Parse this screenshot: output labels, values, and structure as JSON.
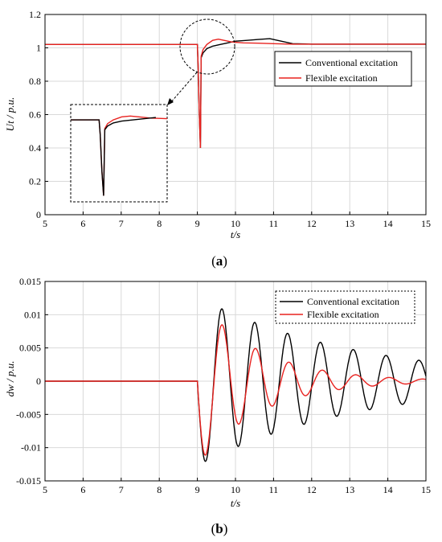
{
  "colors": {
    "conventional": "#000000",
    "flexible": "#e8221f",
    "grid": "#d9d9d9"
  },
  "chart_data": [
    {
      "type": "line",
      "panel": "a",
      "caption": "(a)",
      "caption_letter": "a",
      "title": "",
      "xlabel": "t/s",
      "ylabel": "Ut / p.u.",
      "xlim": [
        5,
        15
      ],
      "ylim": [
        0,
        1.2
      ],
      "xticks": [
        "5",
        "6",
        "7",
        "8",
        "9",
        "10",
        "11",
        "12",
        "13",
        "14",
        "15"
      ],
      "yticks": [
        "0",
        "0.2",
        "0.4",
        "0.6",
        "0.8",
        "1",
        "1.2"
      ],
      "grid": true,
      "legend_position": "right",
      "inset": "zoomed view of the dip near t = 9 s",
      "series": [
        {
          "name": "Conventional excitation",
          "x": [
            5,
            9.0,
            9.02,
            9.05,
            9.08,
            9.1,
            9.15,
            9.25,
            9.4,
            9.6,
            9.8,
            10.0,
            10.3,
            10.6,
            10.9,
            11.2,
            11.5,
            12.0,
            15
          ],
          "y": [
            1.02,
            1.02,
            0.9,
            0.6,
            0.4,
            0.94,
            0.97,
            0.995,
            1.01,
            1.02,
            1.03,
            1.04,
            1.045,
            1.05,
            1.055,
            1.04,
            1.025,
            1.022,
            1.022
          ]
        },
        {
          "name": "Flexible excitation",
          "x": [
            5,
            9.0,
            9.02,
            9.05,
            9.08,
            9.1,
            9.15,
            9.25,
            9.4,
            9.55,
            9.7,
            9.9,
            10.2,
            10.6,
            11.0,
            11.5,
            12.0,
            15
          ],
          "y": [
            1.02,
            1.02,
            0.9,
            0.6,
            0.4,
            0.95,
            0.99,
            1.02,
            1.045,
            1.052,
            1.045,
            1.035,
            1.03,
            1.028,
            1.025,
            1.022,
            1.022,
            1.022
          ]
        }
      ]
    },
    {
      "type": "line",
      "panel": "b",
      "caption": "(b)",
      "caption_letter": "b",
      "title": "",
      "xlabel": "t/s",
      "ylabel": "dw / p.u.",
      "xlim": [
        5,
        15
      ],
      "ylim": [
        -0.015,
        0.015
      ],
      "xticks": [
        "5",
        "6",
        "7",
        "8",
        "9",
        "10",
        "11",
        "12",
        "13",
        "14",
        "15"
      ],
      "yticks": [
        "0.015",
        "0.01",
        "0.005",
        "0",
        "-0.005",
        "-0.01",
        "-0.015"
      ],
      "grid": true,
      "legend_position": "top-right",
      "series": [
        {
          "name": "Conventional excitation",
          "onset": 9.0,
          "freq_hz": 1.16,
          "amp": 0.0127,
          "decay": 0.24
        },
        {
          "name": "Flexible excitation",
          "onset": 9.0,
          "freq_hz": 1.14,
          "amp": 0.0127,
          "decay": 0.62
        }
      ]
    }
  ]
}
